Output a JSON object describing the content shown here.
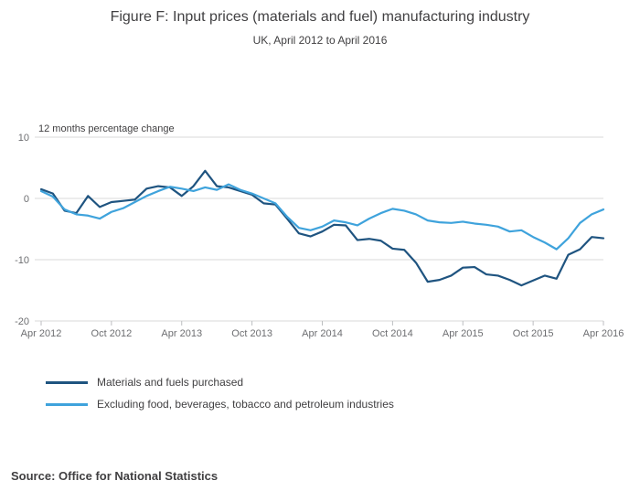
{
  "header": {
    "title": "Figure F: Input prices (materials and fuel) manufacturing industry",
    "subtitle": "UK, April 2012 to April 2016"
  },
  "chart_data": {
    "type": "line",
    "title": "Figure F: Input prices (materials and fuel) manufacturing industry",
    "subtitle": "UK, April 2012 to April 2016",
    "ylabel": "12 months percentage change",
    "xlabel": "",
    "ylim": [
      -20,
      10
    ],
    "y_ticks": [
      10,
      0,
      -10,
      -20
    ],
    "grid": "horizontal",
    "legend_position": "bottom-left",
    "x_ticks": [
      {
        "label": "Apr 2012",
        "index": 0
      },
      {
        "label": "Oct 2012",
        "index": 6
      },
      {
        "label": "Apr 2013",
        "index": 12
      },
      {
        "label": "Oct 2013",
        "index": 18
      },
      {
        "label": "Apr 2014",
        "index": 24
      },
      {
        "label": "Oct 2014",
        "index": 30
      },
      {
        "label": "Apr 2015",
        "index": 36
      },
      {
        "label": "Oct 2015",
        "index": 42
      },
      {
        "label": "Apr 2016",
        "index": 48
      }
    ],
    "x_unit": "monthly from Apr 2012 to Apr 2016",
    "series": [
      {
        "name": "Materials and fuels purchased",
        "color": "#1f5480",
        "values": [
          1.5,
          0.8,
          -2.0,
          -2.4,
          0.4,
          -1.4,
          -0.6,
          -0.4,
          -0.2,
          1.6,
          2.0,
          1.8,
          0.4,
          2.0,
          4.5,
          2.0,
          1.8,
          1.2,
          0.6,
          -0.8,
          -1.0,
          -3.3,
          -5.7,
          -6.2,
          -5.4,
          -4.3,
          -4.4,
          -6.8,
          -6.6,
          -6.9,
          -8.2,
          -8.4,
          -10.5,
          -13.6,
          -13.3,
          -12.6,
          -11.3,
          -11.2,
          -12.4,
          -12.6,
          -13.3,
          -14.2,
          -13.4,
          -12.6,
          -13.1,
          -9.2,
          -8.3,
          -6.3,
          -6.5
        ]
      },
      {
        "name": "Excluding food, beverages, tobacco and petroleum industries",
        "color": "#3fa3dc",
        "values": [
          1.2,
          0.3,
          -1.8,
          -2.6,
          -2.8,
          -3.3,
          -2.2,
          -1.6,
          -0.6,
          0.4,
          1.2,
          1.9,
          1.6,
          1.2,
          1.8,
          1.4,
          2.3,
          1.4,
          0.8,
          0.0,
          -0.8,
          -3.0,
          -4.8,
          -5.2,
          -4.6,
          -3.6,
          -3.9,
          -4.4,
          -3.3,
          -2.4,
          -1.7,
          -2.0,
          -2.6,
          -3.6,
          -3.9,
          -4.0,
          -3.8,
          -4.1,
          -4.3,
          -4.6,
          -5.4,
          -5.2,
          -6.3,
          -7.2,
          -8.3,
          -6.5,
          -4.0,
          -2.6,
          -1.8
        ]
      }
    ]
  },
  "footer": {
    "source": "Source: Office for National Statistics"
  }
}
